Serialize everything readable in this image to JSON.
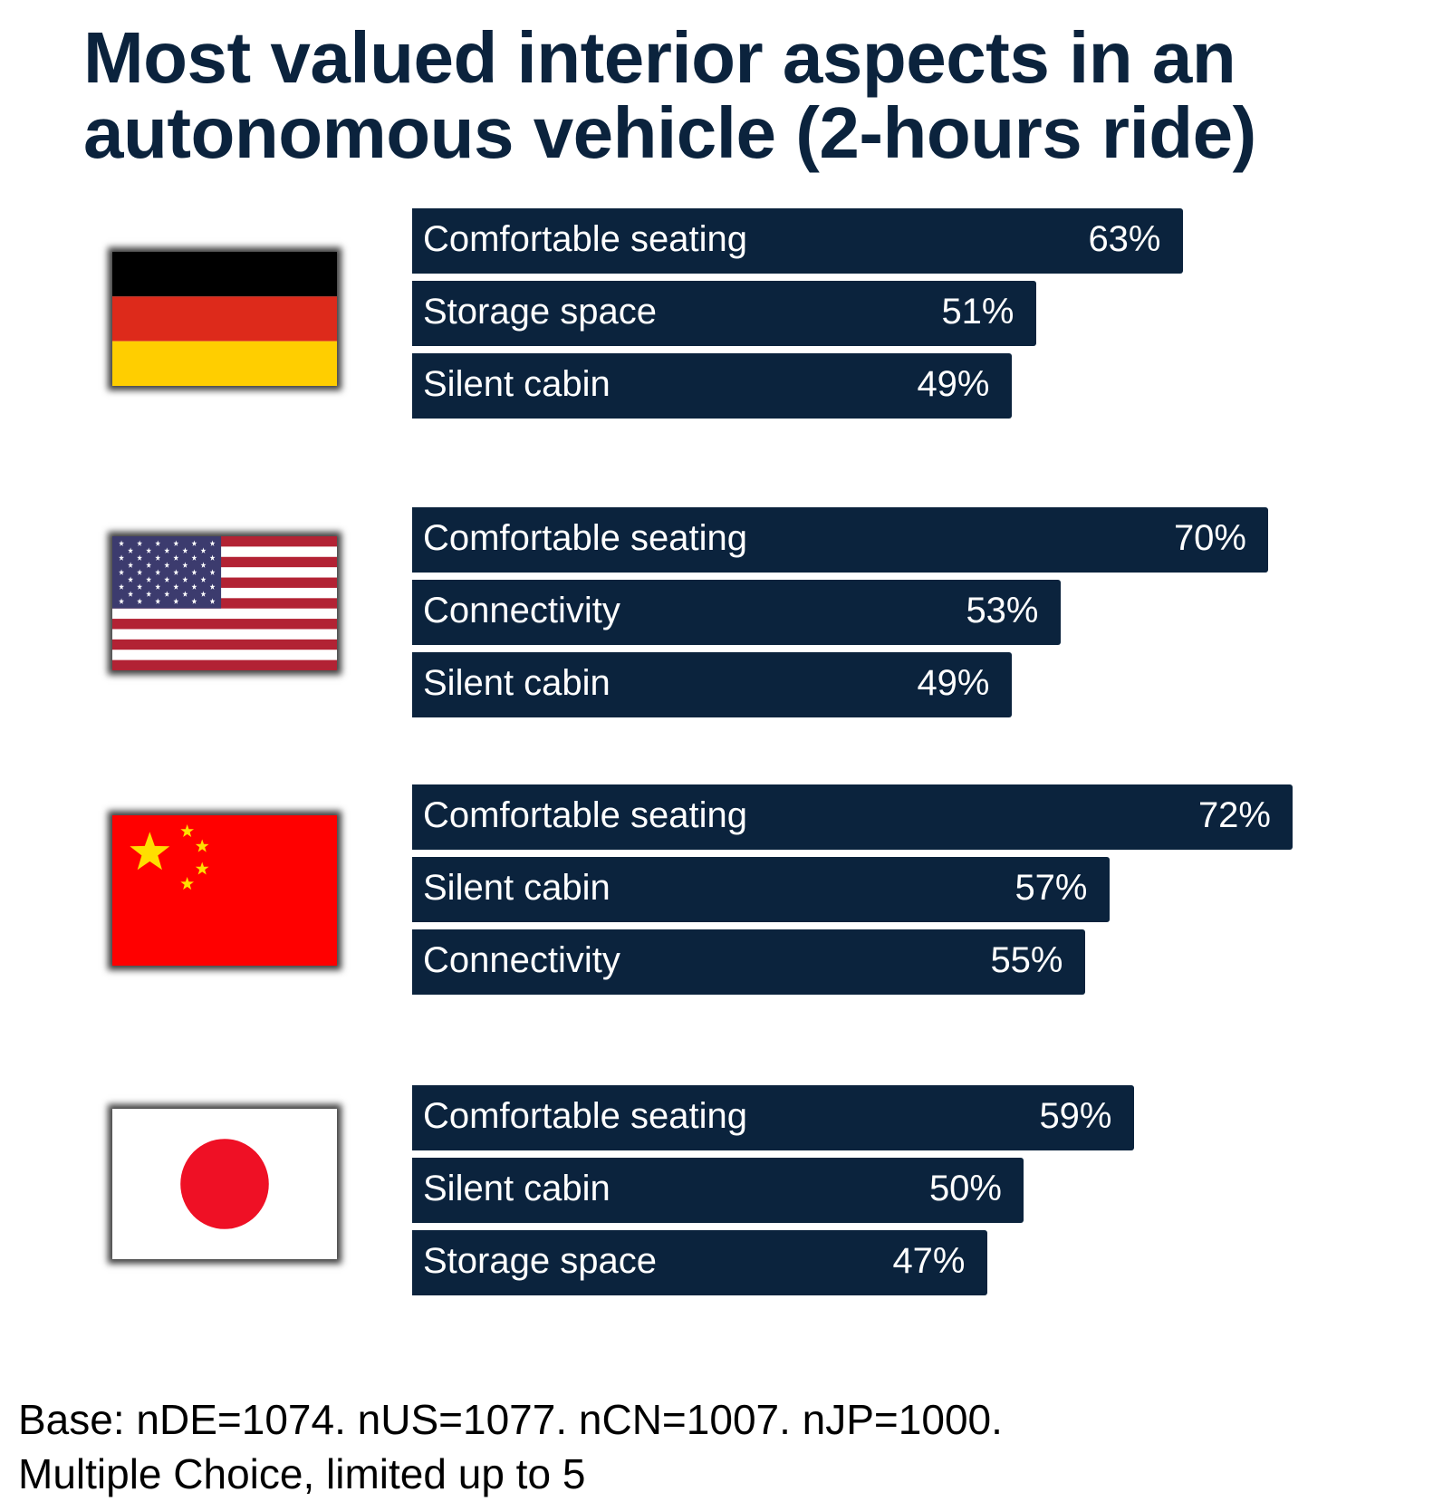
{
  "colors": {
    "title": "#0b233d",
    "bar": "#0b233d",
    "bar_text": "#ffffff"
  },
  "chart_data": {
    "type": "bar",
    "orientation": "horizontal",
    "title": "Most valued interior aspects in an autonomous vehicle (2-hours ride)",
    "unit": "%",
    "xlim": [
      0,
      100
    ],
    "grid": false,
    "groups": [
      {
        "flag": "germany-flag-icon",
        "bars": [
          {
            "label": "Comfortable seating",
            "value": 63,
            "display": "63%"
          },
          {
            "label": "Storage space",
            "value": 51,
            "display": "51%"
          },
          {
            "label": "Silent cabin",
            "value": 49,
            "display": "49%"
          }
        ]
      },
      {
        "flag": "usa-flag-icon",
        "bars": [
          {
            "label": "Comfortable seating",
            "value": 70,
            "display": "70%"
          },
          {
            "label": "Connectivity",
            "value": 53,
            "display": "53%"
          },
          {
            "label": "Silent cabin",
            "value": 49,
            "display": "49%"
          }
        ]
      },
      {
        "flag": "china-flag-icon",
        "bars": [
          {
            "label": "Comfortable seating",
            "value": 72,
            "display": "72%"
          },
          {
            "label": "Silent cabin",
            "value": 57,
            "display": "57%"
          },
          {
            "label": "Connectivity",
            "value": 55,
            "display": "55%"
          }
        ]
      },
      {
        "flag": "japan-flag-icon",
        "bars": [
          {
            "label": "Comfortable seating",
            "value": 59,
            "display": "59%"
          },
          {
            "label": "Silent cabin",
            "value": 50,
            "display": "50%"
          },
          {
            "label": "Storage space",
            "value": 47,
            "display": "47%"
          }
        ]
      }
    ]
  },
  "footnote": {
    "line1": "Base: nDE=1074. nUS=1077. nCN=1007. nJP=1000.",
    "line2": "Multiple Choice, limited up to 5"
  }
}
